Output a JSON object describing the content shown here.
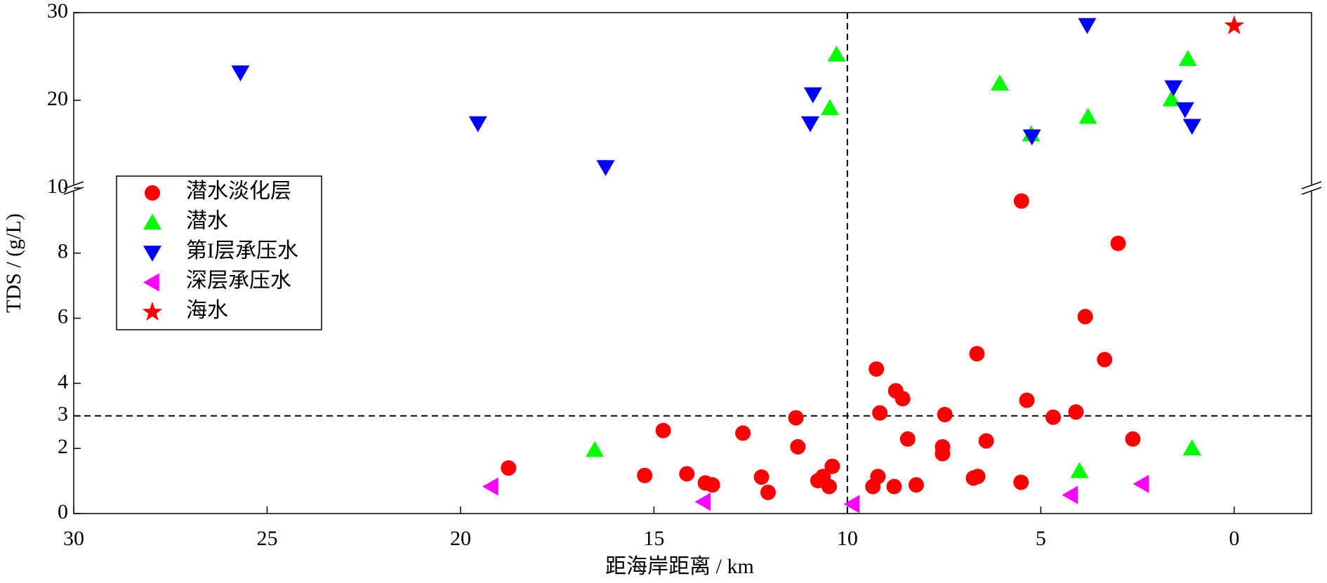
{
  "chart_data": {
    "type": "scatter",
    "xlabel": "距海岸距离 / km",
    "ylabel": "TDS / (g/L)",
    "xlim": [
      30,
      -2
    ],
    "xticks": [
      30,
      25,
      20,
      15,
      10,
      5,
      0
    ],
    "ylim": [
      0,
      30
    ],
    "y_break": 10,
    "yticks": [
      0,
      2,
      3,
      4,
      6,
      8,
      10,
      20,
      30
    ],
    "vlines": [
      10
    ],
    "hlines": [
      3
    ],
    "legend": "upper left",
    "series": [
      {
        "name": "潜水淡化层",
        "color": "#ff0000",
        "marker": "circle",
        "x": [
          5.5,
          3.0,
          3.85,
          6.65,
          3.35,
          9.25,
          8.75,
          8.57,
          5.36,
          9.16,
          7.48,
          4.68,
          4.09,
          11.33,
          14.76,
          12.7,
          8.44,
          2.62,
          6.41,
          11.28,
          7.54,
          7.54,
          18.76,
          10.39,
          14.15,
          15.24,
          12.22,
          9.21,
          10.63,
          6.63,
          6.74,
          10.76,
          5.51,
          13.67,
          13.49,
          8.22,
          9.34,
          8.79,
          10.47,
          12.05
        ],
        "values": [
          9.6,
          8.3,
          6.05,
          4.91,
          4.73,
          4.44,
          3.77,
          3.53,
          3.48,
          3.09,
          3.04,
          2.96,
          3.12,
          2.94,
          2.55,
          2.47,
          2.29,
          2.29,
          2.23,
          2.05,
          2.05,
          1.84,
          1.4,
          1.45,
          1.22,
          1.17,
          1.12,
          1.14,
          1.14,
          1.14,
          1.09,
          1.01,
          0.96,
          0.94,
          0.88,
          0.88,
          0.83,
          0.83,
          0.83,
          0.65
        ]
      },
      {
        "name": "潜水",
        "color": "#00ff00",
        "marker": "triangle-up",
        "x": [
          10.28,
          1.2,
          6.06,
          1.62,
          10.45,
          3.78,
          5.25,
          16.53,
          1.09,
          4.0
        ],
        "values": [
          25.2,
          24.7,
          21.9,
          20.1,
          19.1,
          18.1,
          16.1,
          1.95,
          2.0,
          1.3
        ]
      },
      {
        "name": "第I层承压水",
        "color": "#0000ff",
        "marker": "triangle-down",
        "x": [
          3.8,
          25.69,
          10.89,
          1.57,
          19.55,
          10.96,
          1.27,
          1.09,
          5.23,
          16.25
        ],
        "values": [
          28.6,
          23.2,
          20.7,
          21.5,
          17.4,
          17.4,
          19.0,
          17.1,
          15.9,
          12.4
        ]
      },
      {
        "name": "深层承压水",
        "color": "#ff00ff",
        "marker": "triangle-left",
        "x": [
          19.2,
          13.71,
          9.86,
          4.22,
          2.38
        ],
        "values": [
          0.83,
          0.36,
          0.29,
          0.57,
          0.91
        ]
      },
      {
        "name": "海水",
        "color": "#ff0000",
        "marker": "star",
        "x": [
          0
        ],
        "values": [
          28.5
        ]
      }
    ]
  }
}
